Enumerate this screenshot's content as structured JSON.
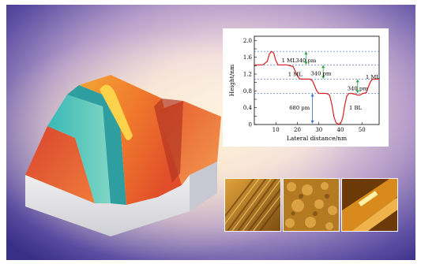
{
  "chart_data": {
    "type": "line",
    "xlabel": "Lateral distance/nm",
    "ylabel": "Height/nm",
    "xlim": [
      0,
      58
    ],
    "ylim": [
      0,
      2.1
    ],
    "xticks": [
      "10",
      "20",
      "30",
      "40",
      "50"
    ],
    "yticks": [
      "0",
      "0.2",
      "0.4",
      "0.6",
      "0.8",
      "1.0",
      "1.2",
      "1.4",
      "1.6",
      "1.8",
      "2.0"
    ],
    "series": [
      {
        "values_x": [
          0,
          4,
          6,
          7,
          8,
          9,
          10,
          11,
          15,
          18,
          19,
          20,
          21,
          22,
          26,
          27,
          28,
          29,
          30,
          33,
          34,
          35,
          36,
          37,
          38,
          39,
          40,
          41,
          42,
          43,
          44,
          45,
          47,
          48,
          49,
          50,
          52,
          53,
          54,
          55,
          56,
          58
        ],
        "values_y": [
          1.42,
          1.42,
          1.5,
          1.68,
          1.74,
          1.7,
          1.52,
          1.42,
          1.42,
          1.38,
          1.27,
          1.16,
          1.09,
          1.08,
          1.08,
          1.04,
          0.92,
          0.8,
          0.74,
          0.74,
          0.73,
          0.7,
          0.48,
          0.18,
          0.04,
          0.01,
          0.02,
          0.14,
          0.45,
          0.68,
          0.74,
          0.74,
          0.72,
          0.7,
          0.7,
          0.73,
          0.76,
          0.9,
          1.02,
          1.08,
          1.08,
          1.08
        ]
      }
    ],
    "annotations": [
      {
        "text": "1 ML",
        "x": 16,
        "y": 1.53
      },
      {
        "text": "340 pm",
        "x": 24,
        "y": 1.53
      },
      {
        "text": "1 ML",
        "x": 19,
        "y": 1.2
      },
      {
        "text": "340 pm",
        "x": 31,
        "y": 1.22
      },
      {
        "text": "340 pm",
        "x": 48,
        "y": 0.86
      },
      {
        "text": "1 ML",
        "x": 55,
        "y": 1.13
      },
      {
        "text": "680 pm",
        "x": 21,
        "y": 0.4
      },
      {
        "text": "1 BL",
        "x": 47,
        "y": 0.4
      }
    ],
    "dashed_levels": [
      1.74,
      1.42,
      1.08,
      0.74
    ],
    "arrows": [
      {
        "x": 24,
        "y1": 1.42,
        "y2": 1.74
      },
      {
        "x": 32,
        "y1": 1.08,
        "y2": 1.42
      },
      {
        "x": 48,
        "y1": 0.74,
        "y2": 1.08
      },
      {
        "x": 27,
        "y1": 0.02,
        "y2": 0.74
      }
    ]
  }
}
